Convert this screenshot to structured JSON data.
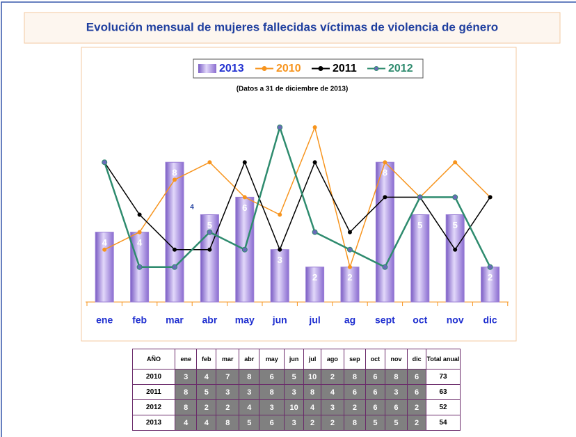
{
  "chart_data": {
    "type": "bar",
    "title": "Evolución mensual de mujeres fallecidas víctimas de violencia de género",
    "subtitle": "(Datos a 31 de diciembre de 2013)",
    "annotation": "4",
    "categories": [
      "ene",
      "feb",
      "mar",
      "abr",
      "may",
      "jun",
      "jul",
      "ag",
      "sept",
      "oct",
      "nov",
      "dic"
    ],
    "ylim": [
      0,
      10
    ],
    "series": [
      {
        "name": "2013",
        "type": "bar",
        "color": "#9b7fd6",
        "values": [
          4,
          4,
          8,
          5,
          6,
          3,
          2,
          2,
          8,
          5,
          5,
          2
        ]
      },
      {
        "name": "2010",
        "type": "line",
        "color": "#f7941d",
        "values": [
          3,
          4,
          7,
          8,
          6,
          5,
          10,
          2,
          8,
          6,
          8,
          6
        ]
      },
      {
        "name": "2011",
        "type": "line",
        "color": "#000000",
        "values": [
          8,
          5,
          3,
          3,
          8,
          3,
          8,
          4,
          6,
          6,
          3,
          6
        ]
      },
      {
        "name": "2012",
        "type": "line",
        "color": "#2e8b6e",
        "values": [
          8,
          2,
          2,
          4,
          3,
          10,
          4,
          3,
          2,
          6,
          6,
          2
        ]
      }
    ]
  },
  "table": {
    "header": [
      "AÑO",
      "ene",
      "feb",
      "mar",
      "abr",
      "may",
      "jun",
      "jul",
      "ago",
      "sep",
      "oct",
      "nov",
      "dic",
      "Total anual"
    ],
    "rows": [
      [
        "2010",
        "3",
        "4",
        "7",
        "8",
        "6",
        "5",
        "10",
        "2",
        "8",
        "6",
        "8",
        "6",
        "73"
      ],
      [
        "2011",
        "8",
        "5",
        "3",
        "3",
        "8",
        "3",
        "8",
        "4",
        "6",
        "6",
        "3",
        "6",
        "63"
      ],
      [
        "2012",
        "8",
        "2",
        "2",
        "4",
        "3",
        "10",
        "4",
        "3",
        "2",
        "6",
        "6",
        "2",
        "52"
      ],
      [
        "2013",
        "4",
        "4",
        "8",
        "5",
        "6",
        "3",
        "2",
        "2",
        "8",
        "5",
        "5",
        "2",
        "54"
      ]
    ]
  }
}
